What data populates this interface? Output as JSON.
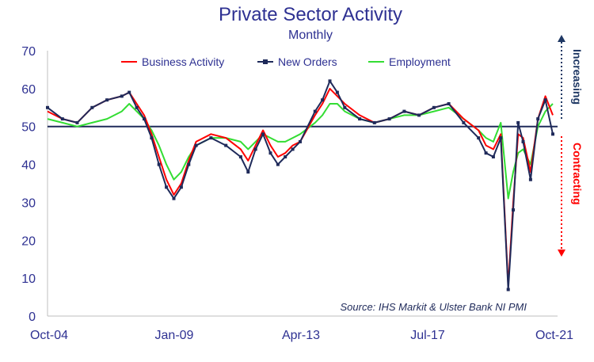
{
  "chart_data": {
    "type": "line",
    "title": "Private Sector Activity",
    "subtitle": "Monthly",
    "xlabel": "",
    "ylabel": "",
    "ylim": [
      0,
      70
    ],
    "yticks": [
      0,
      10,
      20,
      30,
      40,
      50,
      60,
      70
    ],
    "x_tick_labels": [
      "Oct-04",
      "Jan-09",
      "Apr-13",
      "Jul-17",
      "Oct-21"
    ],
    "reference_line": 50,
    "grid": false,
    "legend_position": "top",
    "source": "Source: IHS Markit & Ulster Bank NI PMI",
    "annotation_up": "Increasing",
    "annotation_down": "Contracting",
    "colors": {
      "business": "#ff0000",
      "orders": "#1f2a5a",
      "employment": "#33dd33",
      "text": "#2e3192",
      "up": "#1f3864",
      "down": "#ff0000"
    },
    "series": [
      {
        "name": "Business Activity",
        "key": "business",
        "points": [
          [
            "2004-10",
            54
          ],
          [
            "2005-04",
            52
          ],
          [
            "2005-10",
            51
          ],
          [
            "2006-04",
            55
          ],
          [
            "2006-10",
            57
          ],
          [
            "2007-04",
            58
          ],
          [
            "2007-07",
            59
          ],
          [
            "2007-10",
            56
          ],
          [
            "2008-01",
            53
          ],
          [
            "2008-04",
            48
          ],
          [
            "2008-07",
            42
          ],
          [
            "2008-10",
            36
          ],
          [
            "2009-01",
            32
          ],
          [
            "2009-04",
            35
          ],
          [
            "2009-07",
            41
          ],
          [
            "2009-10",
            46
          ],
          [
            "2010-04",
            48
          ],
          [
            "2010-10",
            47
          ],
          [
            "2011-04",
            44
          ],
          [
            "2011-07",
            41
          ],
          [
            "2011-10",
            45
          ],
          [
            "2012-01",
            49
          ],
          [
            "2012-04",
            45
          ],
          [
            "2012-07",
            42
          ],
          [
            "2012-10",
            43
          ],
          [
            "2013-01",
            45
          ],
          [
            "2013-04",
            46
          ],
          [
            "2013-10",
            53
          ],
          [
            "2014-01",
            56
          ],
          [
            "2014-04",
            60
          ],
          [
            "2014-07",
            58
          ],
          [
            "2014-10",
            56
          ],
          [
            "2015-04",
            53
          ],
          [
            "2015-10",
            51
          ],
          [
            "2016-04",
            52
          ],
          [
            "2016-10",
            54
          ],
          [
            "2017-04",
            53
          ],
          [
            "2017-10",
            55
          ],
          [
            "2018-04",
            56
          ],
          [
            "2018-10",
            52
          ],
          [
            "2019-04",
            49
          ],
          [
            "2019-07",
            45
          ],
          [
            "2019-10",
            44
          ],
          [
            "2020-01",
            48
          ],
          [
            "2020-04",
            8
          ],
          [
            "2020-06",
            30
          ],
          [
            "2020-08",
            48
          ],
          [
            "2020-10",
            47
          ],
          [
            "2021-01",
            38
          ],
          [
            "2021-04",
            52
          ],
          [
            "2021-07",
            58
          ],
          [
            "2021-10",
            53
          ]
        ]
      },
      {
        "name": "New Orders",
        "key": "orders",
        "points": [
          [
            "2004-10",
            55
          ],
          [
            "2005-04",
            52
          ],
          [
            "2005-10",
            51
          ],
          [
            "2006-04",
            55
          ],
          [
            "2006-10",
            57
          ],
          [
            "2007-04",
            58
          ],
          [
            "2007-07",
            59
          ],
          [
            "2007-10",
            55
          ],
          [
            "2008-01",
            52
          ],
          [
            "2008-04",
            47
          ],
          [
            "2008-07",
            40
          ],
          [
            "2008-10",
            34
          ],
          [
            "2009-01",
            31
          ],
          [
            "2009-04",
            34
          ],
          [
            "2009-07",
            40
          ],
          [
            "2009-10",
            45
          ],
          [
            "2010-04",
            47
          ],
          [
            "2010-10",
            45
          ],
          [
            "2011-04",
            42
          ],
          [
            "2011-07",
            38
          ],
          [
            "2011-10",
            44
          ],
          [
            "2012-01",
            48
          ],
          [
            "2012-04",
            43
          ],
          [
            "2012-07",
            40
          ],
          [
            "2012-10",
            42
          ],
          [
            "2013-01",
            44
          ],
          [
            "2013-04",
            46
          ],
          [
            "2013-10",
            54
          ],
          [
            "2014-01",
            57
          ],
          [
            "2014-04",
            62
          ],
          [
            "2014-07",
            59
          ],
          [
            "2014-10",
            55
          ],
          [
            "2015-04",
            52
          ],
          [
            "2015-10",
            51
          ],
          [
            "2016-04",
            52
          ],
          [
            "2016-10",
            54
          ],
          [
            "2017-04",
            53
          ],
          [
            "2017-10",
            55
          ],
          [
            "2018-04",
            56
          ],
          [
            "2018-10",
            51
          ],
          [
            "2019-04",
            47
          ],
          [
            "2019-07",
            43
          ],
          [
            "2019-10",
            42
          ],
          [
            "2020-01",
            47
          ],
          [
            "2020-04",
            7
          ],
          [
            "2020-06",
            28
          ],
          [
            "2020-08",
            51
          ],
          [
            "2020-10",
            46
          ],
          [
            "2021-01",
            36
          ],
          [
            "2021-04",
            52
          ],
          [
            "2021-07",
            57
          ],
          [
            "2021-10",
            48
          ]
        ]
      },
      {
        "name": "Employment",
        "key": "employment",
        "points": [
          [
            "2004-10",
            52
          ],
          [
            "2005-04",
            51
          ],
          [
            "2005-10",
            50
          ],
          [
            "2006-04",
            51
          ],
          [
            "2006-10",
            52
          ],
          [
            "2007-04",
            54
          ],
          [
            "2007-07",
            56
          ],
          [
            "2007-10",
            54
          ],
          [
            "2008-01",
            52
          ],
          [
            "2008-04",
            49
          ],
          [
            "2008-07",
            45
          ],
          [
            "2008-10",
            40
          ],
          [
            "2009-01",
            36
          ],
          [
            "2009-04",
            38
          ],
          [
            "2009-07",
            42
          ],
          [
            "2009-10",
            45
          ],
          [
            "2010-04",
            47
          ],
          [
            "2010-10",
            47
          ],
          [
            "2011-04",
            46
          ],
          [
            "2011-07",
            44
          ],
          [
            "2011-10",
            46
          ],
          [
            "2012-01",
            48
          ],
          [
            "2012-04",
            47
          ],
          [
            "2012-07",
            46
          ],
          [
            "2012-10",
            46
          ],
          [
            "2013-01",
            47
          ],
          [
            "2013-04",
            48
          ],
          [
            "2013-10",
            51
          ],
          [
            "2014-01",
            53
          ],
          [
            "2014-04",
            56
          ],
          [
            "2014-07",
            56
          ],
          [
            "2014-10",
            54
          ],
          [
            "2015-04",
            52
          ],
          [
            "2015-10",
            51
          ],
          [
            "2016-04",
            52
          ],
          [
            "2016-10",
            53
          ],
          [
            "2017-04",
            53
          ],
          [
            "2017-10",
            54
          ],
          [
            "2018-04",
            55
          ],
          [
            "2018-10",
            52
          ],
          [
            "2019-04",
            49
          ],
          [
            "2019-07",
            47
          ],
          [
            "2019-10",
            46
          ],
          [
            "2020-01",
            51
          ],
          [
            "2020-04",
            31
          ],
          [
            "2020-06",
            38
          ],
          [
            "2020-08",
            43
          ],
          [
            "2020-10",
            44
          ],
          [
            "2021-01",
            40
          ],
          [
            "2021-04",
            50
          ],
          [
            "2021-07",
            54
          ],
          [
            "2021-10",
            56
          ]
        ]
      }
    ]
  }
}
